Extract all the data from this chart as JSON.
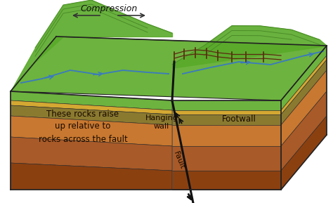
{
  "bg_color": "#ffffff",
  "compression_text": "Compression",
  "hanging_wall_text": "Hanging\nwall",
  "footwall_text": "Footwall",
  "fault_text": "Fault",
  "raise_text": "These rocks raise\nup relative to\nrocks across the fault",
  "green_top": "#6db33f",
  "green_dark": "#4a8c28",
  "green_hill": "#5aaa2a",
  "yellow_layer": "#d4a832",
  "orange_layer": "#c87830",
  "brown_layer1": "#a85a28",
  "brown_layer2": "#8b4010",
  "brown_layer3": "#7a3510",
  "olive_layer": "#8a7a30",
  "fault_color": "#111111",
  "text_color": "#1a0a00",
  "river_color": "#3a7abf",
  "fence_color": "#5a2a10",
  "outline_color": "#222222"
}
